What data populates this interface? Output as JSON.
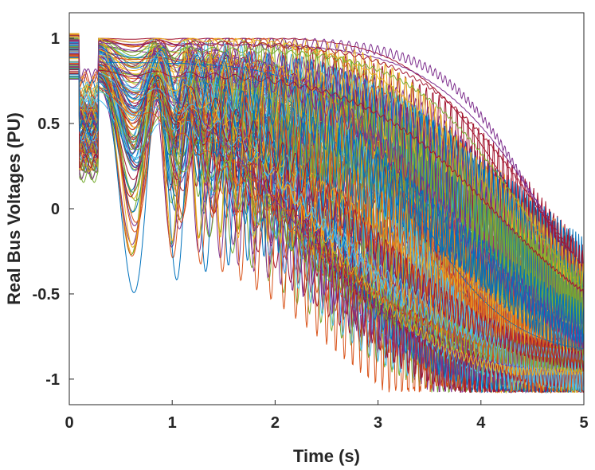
{
  "chart_data": {
    "type": "line",
    "xlabel": "Time (s)",
    "ylabel": "Real Bus Voltages (PU)",
    "xlim": [
      0,
      5
    ],
    "ylim": [
      -1.15,
      1.15
    ],
    "xticks": [
      "0",
      "1",
      "2",
      "3",
      "4",
      "5"
    ],
    "yticks": [
      "-1",
      "-0.5",
      "0",
      "0.5",
      "1"
    ],
    "grid": false,
    "legend": "none",
    "series_count": 120,
    "series_colors": [
      "#0072BD",
      "#D95319",
      "#EDB120",
      "#7E2F8E",
      "#77AC30",
      "#4DBEEE",
      "#A2142F"
    ],
    "fault_window": [
      0.1,
      0.28
    ]
  }
}
